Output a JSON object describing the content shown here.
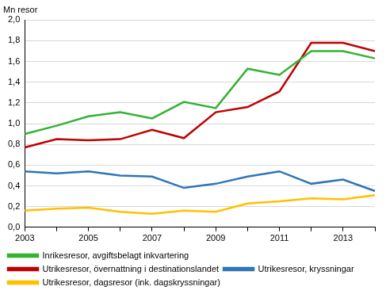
{
  "chart_data": {
    "type": "line",
    "ylabel": "Mn resor",
    "categories": [
      "2003",
      null,
      "2005",
      null,
      "2007",
      null,
      "2009",
      null,
      "2011",
      null,
      "2013",
      null
    ],
    "series": [
      {
        "name": "Inrikesresor, avgiftsbelagt inkvartering",
        "color": "#33b233",
        "values": [
          0.9,
          0.98,
          1.07,
          1.11,
          1.05,
          1.21,
          1.15,
          1.53,
          1.47,
          1.7,
          1.7,
          1.63
        ]
      },
      {
        "name": "Utrikesresor, övernattning i destinationslandet",
        "color": "#c00000",
        "values": [
          0.77,
          0.85,
          0.84,
          0.85,
          0.94,
          0.86,
          1.11,
          1.16,
          1.31,
          1.78,
          1.78,
          1.7
        ]
      },
      {
        "name": "Utrikesresor, kryssningar",
        "color": "#2e75b6",
        "values": [
          0.54,
          0.52,
          0.54,
          0.5,
          0.49,
          0.38,
          0.42,
          0.49,
          0.54,
          0.42,
          0.46,
          0.35
        ]
      },
      {
        "name": "Utrikesresor, dagsresor (ink. dagskryssningar)",
        "color": "#ffc000",
        "values": [
          0.16,
          0.18,
          0.19,
          0.15,
          0.13,
          0.16,
          0.15,
          0.23,
          0.25,
          0.28,
          0.27,
          0.31
        ]
      }
    ],
    "ylim": [
      0,
      2
    ],
    "yticks": [
      {
        "value": 0,
        "label": "0,0"
      },
      {
        "value": 0.2,
        "label": "0,2"
      },
      {
        "value": 0.4,
        "label": "0,4"
      },
      {
        "value": 0.6,
        "label": "0,6"
      },
      {
        "value": 0.8,
        "label": "0,8"
      },
      {
        "value": 1,
        "label": "1,0"
      },
      {
        "value": 1.2,
        "label": "1,2"
      },
      {
        "value": 1.4,
        "label": "1,4"
      },
      {
        "value": 1.6,
        "label": "1,6"
      },
      {
        "value": 1.8,
        "label": "1,8"
      },
      {
        "value": 2,
        "label": "2,0"
      }
    ],
    "grid": true,
    "legend": "bottom"
  }
}
